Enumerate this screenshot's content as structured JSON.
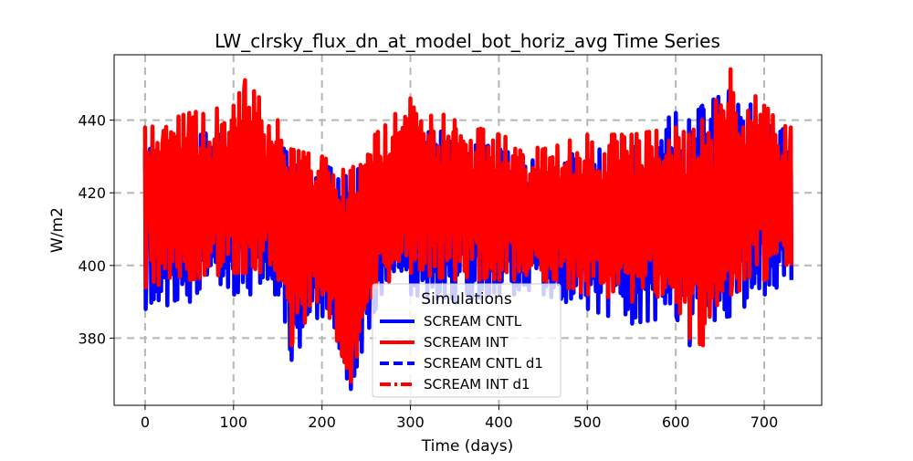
{
  "chart_data": {
    "type": "line",
    "title": "LW_clrsky_flux_dn_at_model_bot_horiz_avg Time Series",
    "xlabel": "Time (days)",
    "ylabel": "W/m2",
    "xlim": [
      -35,
      765
    ],
    "ylim": [
      361.5,
      458
    ],
    "xticks": [
      0,
      100,
      200,
      300,
      400,
      500,
      600,
      700
    ],
    "yticks": [
      380,
      400,
      420,
      440
    ],
    "grid": true,
    "legend": {
      "title": "Simulations",
      "placement": "lower-center"
    },
    "series": [
      {
        "name": "SCREAM CNTL",
        "color": "#0000ff",
        "linestyle": "solid",
        "description": "fluctuating daily-cycle series, roughly between envelope values below",
        "days": [
          0,
          730
        ],
        "envelope": {
          "x": [
            0,
            50,
            100,
            150,
            165,
            200,
            232,
            260,
            300,
            350,
            400,
            450,
            500,
            550,
            600,
            615,
            630,
            660,
            700,
            730
          ],
          "upper": [
            432,
            436,
            438,
            434,
            430,
            428,
            424,
            432,
            440,
            436,
            432,
            428,
            432,
            434,
            442,
            440,
            444,
            448,
            442,
            436
          ],
          "lower": [
            388,
            390,
            392,
            392,
            374,
            386,
            366,
            388,
            392,
            390,
            392,
            392,
            388,
            384,
            386,
            378,
            384,
            386,
            392,
            396
          ]
        }
      },
      {
        "name": "SCREAM INT",
        "color": "#ff0000",
        "linestyle": "solid",
        "description": "fluctuating daily-cycle series overlaid on CNTL",
        "days": [
          0,
          730
        ],
        "envelope": {
          "x": [
            0,
            50,
            100,
            113,
            150,
            165,
            200,
            232,
            260,
            300,
            350,
            400,
            450,
            500,
            550,
            600,
            615,
            630,
            662,
            700,
            730
          ],
          "upper": [
            438,
            442,
            444,
            451,
            440,
            432,
            430,
            426,
            436,
            446,
            440,
            436,
            432,
            436,
            436,
            438,
            436,
            440,
            454,
            444,
            438
          ],
          "lower": [
            394,
            396,
            398,
            398,
            396,
            378,
            392,
            368,
            394,
            398,
            396,
            396,
            396,
            392,
            390,
            390,
            380,
            378,
            392,
            396,
            400
          ]
        }
      },
      {
        "name": "SCREAM CNTL d1",
        "color": "#0000ff",
        "linestyle": "dashed"
      },
      {
        "name": "SCREAM INT d1",
        "color": "#ff0000",
        "linestyle": "dashdot"
      }
    ]
  }
}
